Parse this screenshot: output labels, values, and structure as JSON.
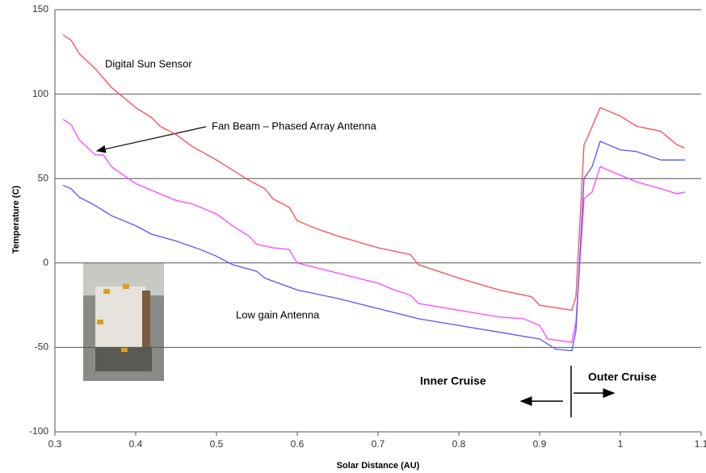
{
  "chart_data": {
    "type": "line",
    "x_label": "Solar Distance (AU)",
    "y_label": "Temperature (C)",
    "xlim": [
      0.3,
      1.1
    ],
    "xticks": [
      0.3,
      0.4,
      0.5,
      0.6,
      0.7,
      0.8,
      0.9,
      1,
      1.1
    ],
    "ylim": [
      -100,
      150
    ],
    "yticks": [
      -100,
      -50,
      0,
      50,
      100,
      150
    ],
    "grid": true,
    "series": [
      {
        "name": "Digital Sun Sensor",
        "color": "#ff4a4a",
        "x": [
          0.31,
          0.32,
          0.33,
          0.35,
          0.37,
          0.4,
          0.42,
          0.43,
          0.45,
          0.47,
          0.5,
          0.52,
          0.54,
          0.56,
          0.57,
          0.59,
          0.6,
          0.62,
          0.65,
          0.7,
          0.74,
          0.75,
          0.8,
          0.85,
          0.89,
          0.9,
          0.94,
          0.945,
          0.955,
          0.96,
          0.975,
          1.0,
          1.02,
          1.05,
          1.07,
          1.08
        ],
        "values": [
          135,
          132,
          124,
          115,
          104,
          92,
          86,
          81,
          76,
          69,
          61,
          55,
          49,
          44,
          38,
          33,
          25,
          21,
          16,
          9,
          5,
          -1,
          -9,
          -16,
          -20,
          -25,
          -28,
          -20,
          70,
          75,
          92,
          87,
          81,
          78,
          70,
          68
        ]
      },
      {
        "name": "Fan Beam – Phased Array Antenna",
        "color": "#ff44ff",
        "x": [
          0.31,
          0.32,
          0.33,
          0.35,
          0.36,
          0.37,
          0.4,
          0.42,
          0.45,
          0.47,
          0.5,
          0.52,
          0.54,
          0.55,
          0.57,
          0.59,
          0.6,
          0.65,
          0.7,
          0.72,
          0.74,
          0.75,
          0.8,
          0.85,
          0.88,
          0.9,
          0.91,
          0.94,
          0.945,
          0.955,
          0.965,
          0.975,
          1.0,
          1.02,
          1.05,
          1.07,
          1.08
        ],
        "values": [
          85,
          82,
          73,
          64,
          64,
          57,
          47,
          43,
          37,
          35,
          29,
          22,
          16,
          11,
          9,
          8,
          0,
          -6,
          -12,
          -16,
          -19,
          -24,
          -28,
          -32,
          -33,
          -37,
          -45,
          -47,
          -35,
          38,
          42,
          57,
          52,
          48,
          44,
          41,
          42
        ]
      },
      {
        "name": "Low gain Antenna",
        "color": "#5555ff",
        "x": [
          0.31,
          0.32,
          0.33,
          0.35,
          0.37,
          0.4,
          0.42,
          0.45,
          0.48,
          0.5,
          0.52,
          0.55,
          0.56,
          0.6,
          0.65,
          0.7,
          0.75,
          0.8,
          0.85,
          0.9,
          0.92,
          0.94,
          0.945,
          0.955,
          0.965,
          0.975,
          1.0,
          1.02,
          1.05,
          1.07,
          1.08
        ],
        "values": [
          46,
          44,
          39,
          34,
          28,
          22,
          17,
          13,
          8,
          4,
          -1,
          -5,
          -9,
          -16,
          -21,
          -27,
          -33,
          -37,
          -41,
          -45,
          -51,
          -52,
          -40,
          50,
          57,
          72,
          67,
          66,
          61,
          61,
          61
        ]
      }
    ],
    "annotations": [
      "Inner Cruise",
      "Outer Cruise"
    ]
  }
}
